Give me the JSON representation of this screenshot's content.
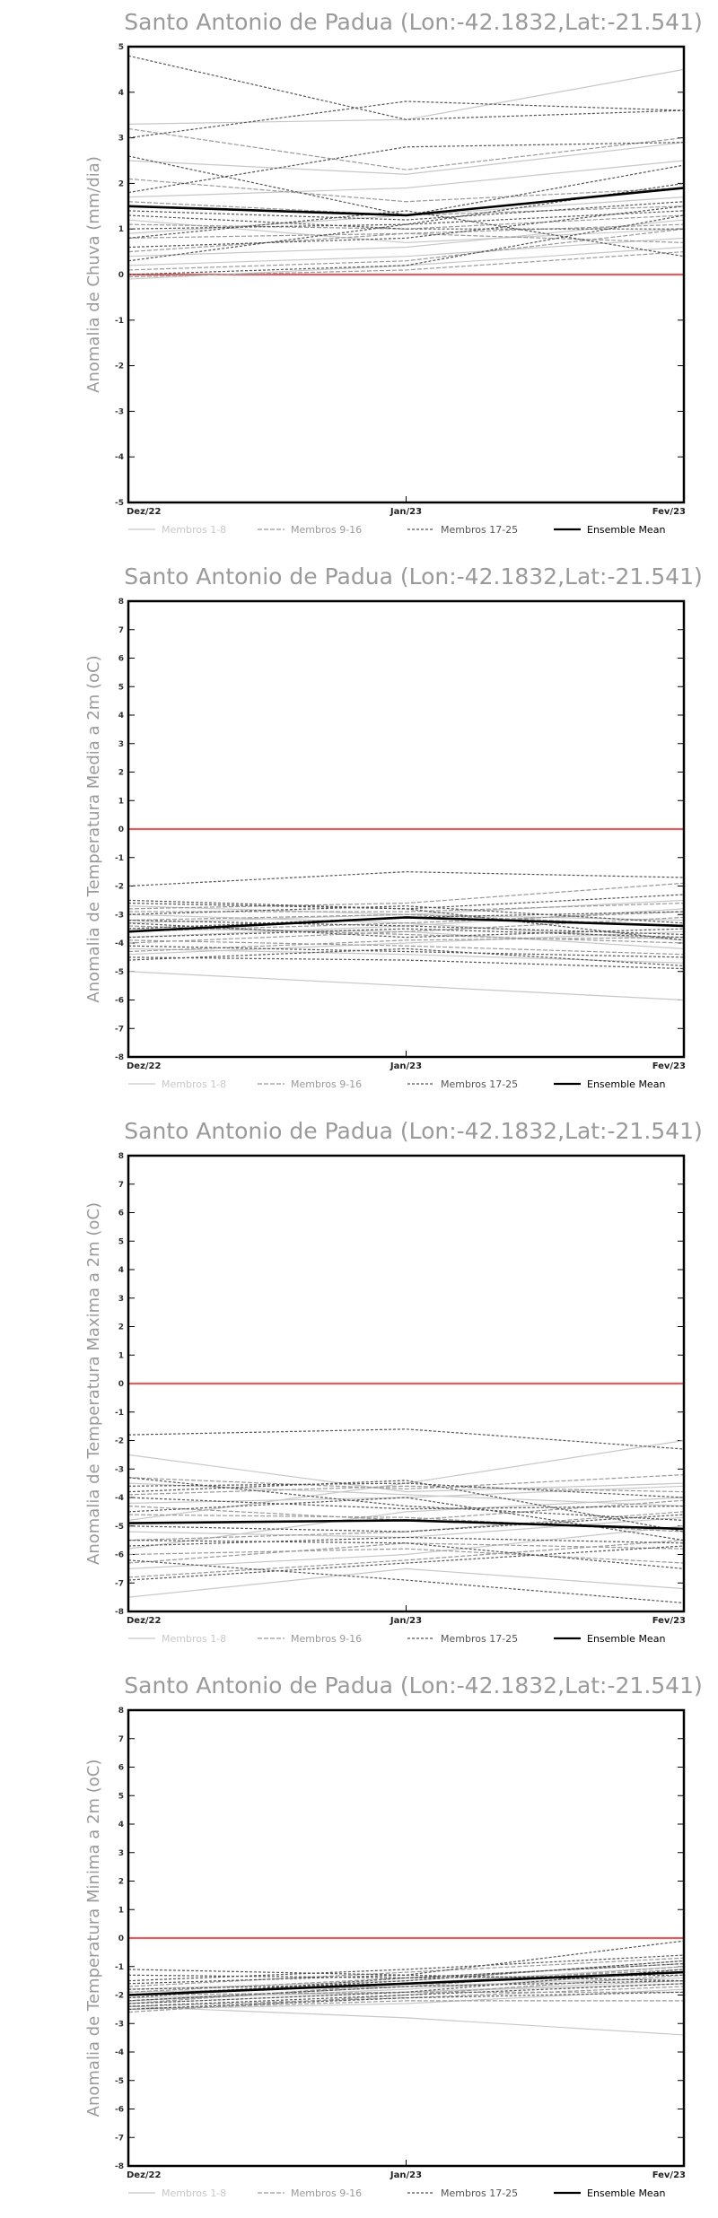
{
  "chart_data": [
    {
      "type": "line",
      "title": "Santo Antonio de Padua (Lon:-42.1832,Lat:-21.541)",
      "ylabel": "Anomalia de Chuva (mm/dia)",
      "xlabel": "",
      "categories": [
        "Dez/22",
        "Jan/23",
        "Fev/23"
      ],
      "ylim": [
        -5,
        5
      ],
      "yticks": [
        -5,
        -4,
        -3,
        -2,
        -1,
        0,
        1,
        2,
        3,
        4,
        5
      ],
      "reference_line": 0,
      "legend": [
        "Membros 1-8",
        "Membros 9-16",
        "Membros 17-25",
        "Ensemble Mean"
      ],
      "series": [
        {
          "group": 0,
          "values": [
            3.3,
            3.4,
            4.5
          ]
        },
        {
          "group": 0,
          "values": [
            2.5,
            2.2,
            2.9
          ]
        },
        {
          "group": 0,
          "values": [
            1.7,
            1.9,
            2.5
          ]
        },
        {
          "group": 0,
          "values": [
            1.2,
            0.7,
            1.0
          ]
        },
        {
          "group": 0,
          "values": [
            0.9,
            1.3,
            1.7
          ]
        },
        {
          "group": 0,
          "values": [
            0.4,
            0.6,
            1.2
          ]
        },
        {
          "group": 0,
          "values": [
            0.2,
            0.4,
            0.8
          ]
        },
        {
          "group": 0,
          "values": [
            -0.1,
            0.2,
            0.6
          ]
        },
        {
          "group": 1,
          "values": [
            3.2,
            2.3,
            3.0
          ]
        },
        {
          "group": 1,
          "values": [
            2.1,
            1.6,
            1.9
          ]
        },
        {
          "group": 1,
          "values": [
            1.6,
            1.3,
            1.5
          ]
        },
        {
          "group": 1,
          "values": [
            1.1,
            1.0,
            1.3
          ]
        },
        {
          "group": 1,
          "values": [
            0.8,
            0.9,
            1.1
          ]
        },
        {
          "group": 1,
          "values": [
            0.5,
            0.9,
            0.7
          ]
        },
        {
          "group": 1,
          "values": [
            0.1,
            0.3,
            1.0
          ]
        },
        {
          "group": 1,
          "values": [
            -0.05,
            0.1,
            0.5
          ]
        },
        {
          "group": 2,
          "values": [
            4.8,
            3.4,
            3.6
          ]
        },
        {
          "group": 2,
          "values": [
            3.0,
            3.8,
            3.6
          ]
        },
        {
          "group": 2,
          "values": [
            2.6,
            1.3,
            2.4
          ]
        },
        {
          "group": 2,
          "values": [
            1.8,
            2.8,
            2.9
          ]
        },
        {
          "group": 2,
          "values": [
            1.4,
            1.2,
            1.6
          ]
        },
        {
          "group": 2,
          "values": [
            1.3,
            1.0,
            1.0
          ]
        },
        {
          "group": 2,
          "values": [
            1.0,
            1.1,
            1.4
          ]
        },
        {
          "group": 2,
          "values": [
            0.8,
            1.4,
            0.4
          ]
        },
        {
          "group": 2,
          "values": [
            0.6,
            0.8,
            1.5
          ]
        },
        {
          "group": 2,
          "values": [
            0.3,
            1.1,
            2.0
          ]
        },
        {
          "group": 2,
          "values": [
            0.0,
            0.2,
            1.3
          ]
        },
        {
          "group": 3,
          "values": [
            1.5,
            1.3,
            1.9
          ]
        }
      ]
    },
    {
      "type": "line",
      "title": "Santo Antonio de Padua (Lon:-42.1832,Lat:-21.541)",
      "ylabel": "Anomalia de Temperatura Media a 2m (oC)",
      "xlabel": "",
      "categories": [
        "Dez/22",
        "Jan/23",
        "Fev/23"
      ],
      "ylim": [
        -8,
        8
      ],
      "yticks": [
        -8,
        -7,
        -6,
        -5,
        -4,
        -3,
        -2,
        -1,
        0,
        1,
        2,
        3,
        4,
        5,
        6,
        7,
        8
      ],
      "reference_line": 0,
      "legend": [
        "Membros 1-8",
        "Membros 9-16",
        "Membros 17-25",
        "Ensemble Mean"
      ],
      "series": [
        {
          "group": 0,
          "values": [
            -5.0,
            -5.5,
            -6.0
          ]
        },
        {
          "group": 0,
          "values": [
            -4.4,
            -4.0,
            -3.6
          ]
        },
        {
          "group": 0,
          "values": [
            -3.8,
            -3.4,
            -2.8
          ]
        },
        {
          "group": 0,
          "values": [
            -3.3,
            -3.0,
            -2.5
          ]
        },
        {
          "group": 0,
          "values": [
            -3.0,
            -3.3,
            -3.9
          ]
        },
        {
          "group": 0,
          "values": [
            -2.7,
            -3.0,
            -3.2
          ]
        },
        {
          "group": 0,
          "values": [
            -4.2,
            -4.4,
            -4.7
          ]
        },
        {
          "group": 0,
          "values": [
            -3.5,
            -3.6,
            -4.2
          ]
        },
        {
          "group": 1,
          "values": [
            -4.0,
            -3.6,
            -3.1
          ]
        },
        {
          "group": 1,
          "values": [
            -3.6,
            -3.3,
            -2.9
          ]
        },
        {
          "group": 1,
          "values": [
            -3.2,
            -3.0,
            -3.4
          ]
        },
        {
          "group": 1,
          "values": [
            -2.9,
            -2.9,
            -2.6
          ]
        },
        {
          "group": 1,
          "values": [
            -4.3,
            -3.9,
            -3.8
          ]
        },
        {
          "group": 1,
          "values": [
            -3.4,
            -3.7,
            -4.0
          ]
        },
        {
          "group": 1,
          "values": [
            -2.8,
            -2.6,
            -1.9
          ]
        },
        {
          "group": 1,
          "values": [
            -3.9,
            -4.1,
            -4.4
          ]
        },
        {
          "group": 2,
          "values": [
            -2.0,
            -1.5,
            -1.7
          ]
        },
        {
          "group": 2,
          "values": [
            -2.5,
            -2.8,
            -2.3
          ]
        },
        {
          "group": 2,
          "values": [
            -3.0,
            -2.7,
            -3.3
          ]
        },
        {
          "group": 2,
          "values": [
            -3.2,
            -3.4,
            -3.7
          ]
        },
        {
          "group": 2,
          "values": [
            -3.5,
            -3.1,
            -2.9
          ]
        },
        {
          "group": 2,
          "values": [
            -3.8,
            -3.5,
            -3.8
          ]
        },
        {
          "group": 2,
          "values": [
            -4.1,
            -4.3,
            -4.5
          ]
        },
        {
          "group": 2,
          "values": [
            -4.5,
            -4.6,
            -4.9
          ]
        },
        {
          "group": 2,
          "values": [
            -3.3,
            -3.8,
            -3.5
          ]
        },
        {
          "group": 2,
          "values": [
            -2.6,
            -2.8,
            -3.9
          ]
        },
        {
          "group": 2,
          "values": [
            -4.6,
            -4.2,
            -4.8
          ]
        },
        {
          "group": 3,
          "values": [
            -3.6,
            -3.1,
            -3.4
          ]
        }
      ]
    },
    {
      "type": "line",
      "title": "Santo Antonio de Padua (Lon:-42.1832,Lat:-21.541)",
      "ylabel": "Anomalia de Temperatura Maxima a 2m (oC)",
      "xlabel": "",
      "categories": [
        "Dez/22",
        "Jan/23",
        "Fev/23"
      ],
      "ylim": [
        -8,
        8
      ],
      "yticks": [
        -8,
        -7,
        -6,
        -5,
        -4,
        -3,
        -2,
        -1,
        0,
        1,
        2,
        3,
        4,
        5,
        6,
        7,
        8
      ],
      "reference_line": 0,
      "legend": [
        "Membros 1-8",
        "Membros 9-16",
        "Membros 17-25",
        "Ensemble Mean"
      ],
      "series": [
        {
          "group": 0,
          "values": [
            -2.5,
            -3.8,
            -3.5
          ]
        },
        {
          "group": 0,
          "values": [
            -7.5,
            -6.5,
            -7.2
          ]
        },
        {
          "group": 0,
          "values": [
            -6.5,
            -6.0,
            -5.0
          ]
        },
        {
          "group": 0,
          "values": [
            -5.8,
            -4.5,
            -4.0
          ]
        },
        {
          "group": 0,
          "values": [
            -4.8,
            -3.5,
            -2.0
          ]
        },
        {
          "group": 0,
          "values": [
            -4.2,
            -4.0,
            -3.6
          ]
        },
        {
          "group": 0,
          "values": [
            -5.2,
            -5.4,
            -4.7
          ]
        },
        {
          "group": 0,
          "values": [
            -3.5,
            -3.9,
            -4.3
          ]
        },
        {
          "group": 1,
          "values": [
            -6.8,
            -6.2,
            -5.5
          ]
        },
        {
          "group": 1,
          "values": [
            -5.5,
            -5.2,
            -4.5
          ]
        },
        {
          "group": 1,
          "values": [
            -4.6,
            -4.7,
            -5.2
          ]
        },
        {
          "group": 1,
          "values": [
            -3.9,
            -3.6,
            -3.8
          ]
        },
        {
          "group": 1,
          "values": [
            -6.0,
            -5.8,
            -6.3
          ]
        },
        {
          "group": 1,
          "values": [
            -4.3,
            -4.8,
            -4.1
          ]
        },
        {
          "group": 1,
          "values": [
            -3.3,
            -3.7,
            -3.2
          ]
        },
        {
          "group": 1,
          "values": [
            -6.3,
            -5.6,
            -5.8
          ]
        },
        {
          "group": 2,
          "values": [
            -1.8,
            -1.6,
            -2.3
          ]
        },
        {
          "group": 2,
          "values": [
            -3.3,
            -4.3,
            -4.8
          ]
        },
        {
          "group": 2,
          "values": [
            -3.6,
            -3.5,
            -4.0
          ]
        },
        {
          "group": 2,
          "values": [
            -4.0,
            -4.4,
            -4.3
          ]
        },
        {
          "group": 2,
          "values": [
            -4.5,
            -4.0,
            -5.5
          ]
        },
        {
          "group": 2,
          "values": [
            -5.0,
            -5.2,
            -4.6
          ]
        },
        {
          "group": 2,
          "values": [
            -5.5,
            -5.6,
            -6.5
          ]
        },
        {
          "group": 2,
          "values": [
            -6.2,
            -6.9,
            -7.7
          ]
        },
        {
          "group": 2,
          "values": [
            -3.8,
            -3.4,
            -5.2
          ]
        },
        {
          "group": 2,
          "values": [
            -6.9,
            -6.3,
            -5.7
          ]
        },
        {
          "group": 2,
          "values": [
            -5.7,
            -5.4,
            -5.6
          ]
        },
        {
          "group": 3,
          "values": [
            -4.9,
            -4.8,
            -5.1
          ]
        }
      ]
    },
    {
      "type": "line",
      "title": "Santo Antonio de Padua (Lon:-42.1832,Lat:-21.541)",
      "ylabel": "Anomalia de Temperatura Minima a 2m (oC)",
      "xlabel": "",
      "categories": [
        "Dez/22",
        "Jan/23",
        "Fev/23"
      ],
      "ylim": [
        -8,
        8
      ],
      "yticks": [
        -8,
        -7,
        -6,
        -5,
        -4,
        -3,
        -2,
        -1,
        0,
        1,
        2,
        3,
        4,
        5,
        6,
        7,
        8
      ],
      "reference_line": 0,
      "legend": [
        "Membros 1-8",
        "Membros 9-16",
        "Membros 17-25",
        "Ensemble Mean"
      ],
      "series": [
        {
          "group": 0,
          "values": [
            -2.4,
            -2.8,
            -3.4
          ]
        },
        {
          "group": 0,
          "values": [
            -2.3,
            -1.9,
            -1.5
          ]
        },
        {
          "group": 0,
          "values": [
            -2.0,
            -1.6,
            -1.0
          ]
        },
        {
          "group": 0,
          "values": [
            -1.8,
            -1.5,
            -0.8
          ]
        },
        {
          "group": 0,
          "values": [
            -2.5,
            -2.3,
            -1.8
          ]
        },
        {
          "group": 0,
          "values": [
            -2.2,
            -1.8,
            -1.2
          ]
        },
        {
          "group": 0,
          "values": [
            -1.9,
            -1.7,
            -1.4
          ]
        },
        {
          "group": 0,
          "values": [
            -2.1,
            -1.9,
            -1.6
          ]
        },
        {
          "group": 1,
          "values": [
            -2.6,
            -2.0,
            -1.3
          ]
        },
        {
          "group": 1,
          "values": [
            -2.4,
            -2.1,
            -1.7
          ]
        },
        {
          "group": 1,
          "values": [
            -2.2,
            -1.7,
            -1.0
          ]
        },
        {
          "group": 1,
          "values": [
            -1.9,
            -1.4,
            -0.9
          ]
        },
        {
          "group": 1,
          "values": [
            -2.0,
            -1.9,
            -1.9
          ]
        },
        {
          "group": 1,
          "values": [
            -2.3,
            -1.6,
            -1.1
          ]
        },
        {
          "group": 1,
          "values": [
            -1.7,
            -1.2,
            -0.7
          ]
        },
        {
          "group": 1,
          "values": [
            -2.5,
            -2.2,
            -2.2
          ]
        },
        {
          "group": 2,
          "values": [
            -1.1,
            -1.3,
            -1.5
          ]
        },
        {
          "group": 2,
          "values": [
            -1.3,
            -1.4,
            -0.9
          ]
        },
        {
          "group": 2,
          "values": [
            -1.6,
            -1.3,
            -0.1
          ]
        },
        {
          "group": 2,
          "values": [
            -1.8,
            -1.6,
            -1.2
          ]
        },
        {
          "group": 2,
          "values": [
            -2.0,
            -1.5,
            -0.8
          ]
        },
        {
          "group": 2,
          "values": [
            -2.2,
            -1.7,
            -1.5
          ]
        },
        {
          "group": 2,
          "values": [
            -2.3,
            -1.9,
            -1.1
          ]
        },
        {
          "group": 2,
          "values": [
            -2.4,
            -2.0,
            -1.6
          ]
        },
        {
          "group": 2,
          "values": [
            -1.5,
            -1.1,
            -0.6
          ]
        },
        {
          "group": 2,
          "values": [
            -2.1,
            -1.4,
            -1.3
          ]
        },
        {
          "group": 2,
          "values": [
            -2.5,
            -2.1,
            -1.9
          ]
        },
        {
          "group": 3,
          "values": [
            -2.0,
            -1.6,
            -1.2
          ]
        }
      ]
    }
  ],
  "colors": {
    "members_1_8": "#c8c8c8",
    "members_9_16": "#9a9a9a",
    "members_17_25": "#555555",
    "ensemble_mean": "#000000",
    "zero_line": "#e06060",
    "frame": "#000000",
    "title_text": "#9a9a9a"
  }
}
